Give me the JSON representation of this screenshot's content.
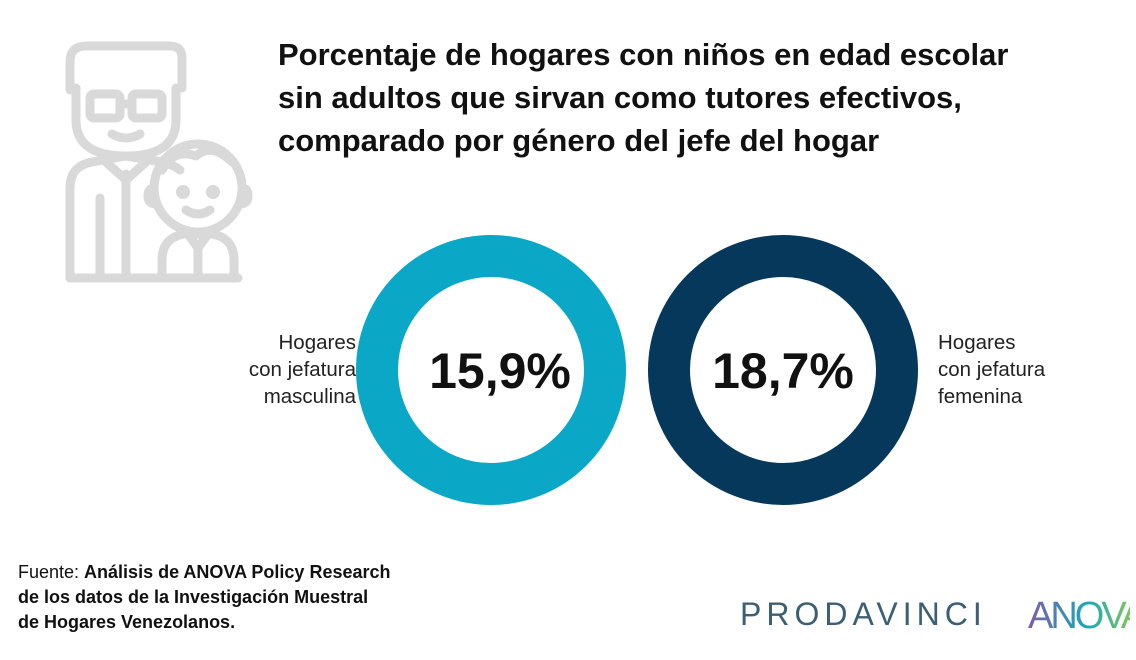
{
  "title_lines": [
    "Porcentaje de hogares con niños en edad escolar",
    "sin adultos que sirvan como tutores efectivos,",
    "comparado por género del jefe del hogar"
  ],
  "chart_data": {
    "type": "donut",
    "items": [
      {
        "value_label": "15,9%",
        "value": 15.9,
        "label_lines": [
          "Hogares",
          "con jefatura",
          "masculina"
        ],
        "color": "#0aa7c6"
      },
      {
        "value_label": "18,7%",
        "value": 18.7,
        "label_lines": [
          "Hogares",
          "con jefatura",
          "femenina"
        ],
        "color": "#06385c"
      }
    ]
  },
  "source": {
    "prefix": "Fuente: ",
    "line1_bold": "Análisis de ANOVA Policy Research",
    "line2": "de los datos de la Investigación Muestral",
    "line3": "de Hogares Venezolanos."
  },
  "logos": {
    "prodavinci": "PRODAVINCI",
    "anova": "ANOVA"
  },
  "colors": {
    "icon": "#d9d9d9",
    "prodavinci": "#3c5f73",
    "anova_purple": "#7b5ea7",
    "anova_teal": "#19a8b8",
    "anova_green": "#a7cf3a"
  },
  "icons": {
    "illustration": "father-and-child-icon"
  }
}
